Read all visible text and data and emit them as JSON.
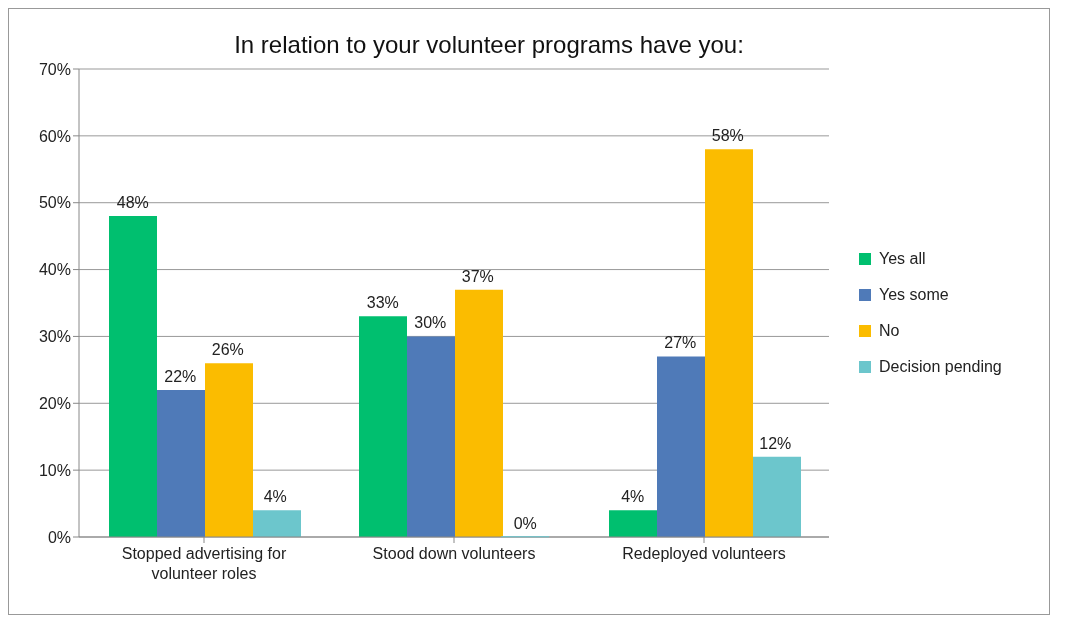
{
  "chart_data": {
    "type": "bar",
    "title": "In relation to your volunteer programs have you:",
    "categories": [
      "Stopped advertising for volunteer roles",
      "Stood down volunteers",
      "Redeployed volunteers"
    ],
    "series": [
      {
        "name": "Yes all",
        "color": "#00bf6f",
        "values": [
          48,
          33,
          4
        ],
        "value_labels": [
          "48%",
          "33%",
          "4%"
        ]
      },
      {
        "name": "Yes some",
        "color": "#4f7ab8",
        "values": [
          22,
          30,
          27
        ],
        "value_labels": [
          "22%",
          "30%",
          "27%"
        ]
      },
      {
        "name": "No",
        "color": "#fbbc00",
        "values": [
          26,
          37,
          58
        ],
        "value_labels": [
          "26%",
          "37%",
          "58%"
        ]
      },
      {
        "name": "Decision pending",
        "color": "#6cc6cc",
        "values": [
          4,
          0,
          12
        ],
        "value_labels": [
          "4%",
          "0%",
          "12%"
        ]
      }
    ],
    "ylim": [
      0,
      70
    ],
    "yticks": [
      {
        "value": 0,
        "label": "0%"
      },
      {
        "value": 10,
        "label": "10%"
      },
      {
        "value": 20,
        "label": "20%"
      },
      {
        "value": 30,
        "label": "30%"
      },
      {
        "value": 40,
        "label": "40%"
      },
      {
        "value": 50,
        "label": "50%"
      },
      {
        "value": 60,
        "label": "60%"
      },
      {
        "value": 70,
        "label": "70%"
      }
    ],
    "grid": "y",
    "legend": "right"
  }
}
